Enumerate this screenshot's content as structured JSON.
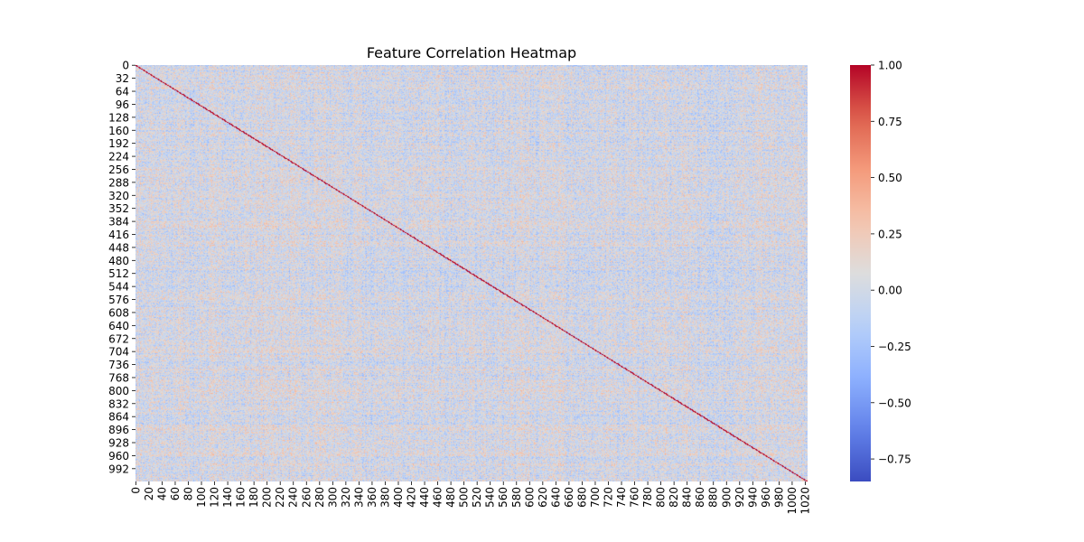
{
  "chart_data": {
    "type": "heatmap",
    "title": "Feature Correlation Heatmap",
    "xlabel": "",
    "ylabel": "",
    "n_features": 1024,
    "x_tick_labels": [
      "0",
      "20",
      "40",
      "60",
      "80",
      "100",
      "120",
      "140",
      "160",
      "180",
      "200",
      "220",
      "240",
      "260",
      "280",
      "300",
      "320",
      "340",
      "360",
      "380",
      "400",
      "420",
      "440",
      "460",
      "480",
      "500",
      "520",
      "540",
      "560",
      "580",
      "600",
      "620",
      "640",
      "660",
      "680",
      "700",
      "720",
      "740",
      "760",
      "780",
      "800",
      "820",
      "840",
      "860",
      "880",
      "900",
      "920",
      "940",
      "960",
      "980",
      "1000",
      "1020"
    ],
    "y_tick_labels": [
      "0",
      "32",
      "64",
      "96",
      "128",
      "160",
      "192",
      "224",
      "256",
      "288",
      "320",
      "352",
      "384",
      "416",
      "448",
      "480",
      "512",
      "544",
      "576",
      "608",
      "640",
      "672",
      "704",
      "736",
      "768",
      "800",
      "832",
      "864",
      "896",
      "928",
      "960",
      "992"
    ],
    "colorbar": {
      "colormap": "coolwarm",
      "vmin": -0.85,
      "vmax": 1.0,
      "ticks": [
        1.0,
        0.75,
        0.5,
        0.25,
        0.0,
        -0.25,
        -0.5,
        -0.75
      ],
      "tick_labels": [
        "1.00",
        "0.75",
        "0.50",
        "0.25",
        "0.00",
        "−0.25",
        "−0.50",
        "−0.75"
      ]
    },
    "diagonal_value": 1.0,
    "off_diagonal_range": [
      -0.5,
      0.5
    ]
  }
}
